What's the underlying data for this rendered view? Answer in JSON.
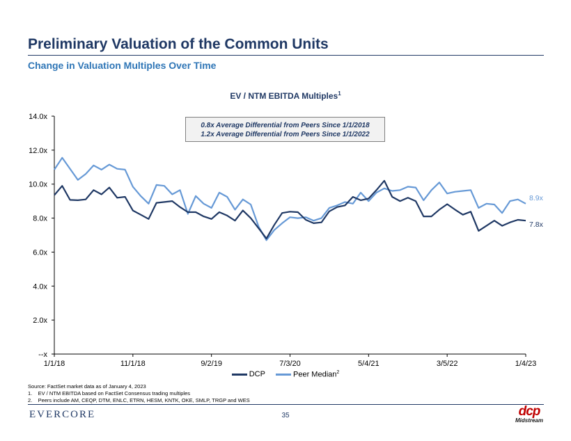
{
  "header": {
    "title": "Preliminary Valuation of the Common Units",
    "subtitle": "Change in Valuation Multiples Over Time"
  },
  "callout": {
    "line1": "0.8x Average Differential from Peers Since 1/1/2018",
    "line2": "1.2x Average Differential from Peers Since 1/1/2022"
  },
  "chart_data": {
    "type": "line",
    "title": "EV / NTM EBITDA Multiples",
    "title_footnote": "1",
    "xlabel": "",
    "ylabel": "",
    "ylim": [
      0,
      14
    ],
    "y_ticks": [
      0,
      2,
      4,
      6,
      8,
      10,
      12,
      14
    ],
    "y_tick_labels": [
      "--x",
      "2.0x",
      "4.0x",
      "6.0x",
      "8.0x",
      "10.0x",
      "12.0x",
      "14.0x"
    ],
    "x_tick_labels": [
      "1/1/18",
      "11/1/18",
      "9/2/19",
      "7/3/20",
      "5/4/21",
      "3/5/22",
      "1/4/23"
    ],
    "grid": false,
    "legend_position": "bottom",
    "colors": {
      "dcp": "#1f3864",
      "peer": "#6699d6"
    },
    "series": [
      {
        "name": "DCP",
        "color": "#1f3864",
        "end_label": "7.8x",
        "values": [
          9.35,
          9.9,
          9.07,
          9.05,
          9.1,
          9.65,
          9.4,
          9.8,
          9.2,
          9.25,
          8.45,
          8.2,
          7.95,
          8.9,
          8.95,
          9.0,
          8.65,
          8.35,
          8.35,
          8.1,
          7.95,
          8.35,
          8.15,
          7.85,
          8.45,
          8.0,
          7.4,
          6.8,
          7.6,
          8.3,
          8.38,
          8.35,
          7.9,
          7.7,
          7.75,
          8.4,
          8.65,
          8.75,
          9.25,
          9.05,
          9.15,
          9.65,
          10.2,
          9.25,
          9.0,
          9.2,
          9.0,
          8.1,
          8.1,
          8.5,
          8.82,
          8.5,
          8.2,
          8.38,
          7.25,
          7.55,
          7.85,
          7.55,
          7.75,
          7.9,
          7.85
        ]
      },
      {
        "name": "Peer Median",
        "name_footnote": "2",
        "color": "#6699d6",
        "end_label": "8.9x",
        "values": [
          10.85,
          11.55,
          10.9,
          10.25,
          10.6,
          11.1,
          10.85,
          11.15,
          10.9,
          10.85,
          9.85,
          9.3,
          8.85,
          9.95,
          9.9,
          9.4,
          9.65,
          8.25,
          9.3,
          8.85,
          8.6,
          9.5,
          9.25,
          8.5,
          9.1,
          8.8,
          7.5,
          6.7,
          7.3,
          7.7,
          8.05,
          8.0,
          8.05,
          7.85,
          8.0,
          8.6,
          8.75,
          8.95,
          8.85,
          9.5,
          9.0,
          9.5,
          9.75,
          9.6,
          9.65,
          9.85,
          9.8,
          9.05,
          9.65,
          10.1,
          9.45,
          9.55,
          9.6,
          9.65,
          8.6,
          8.85,
          8.8,
          8.3,
          9.0,
          9.1,
          8.85
        ]
      }
    ]
  },
  "legend": {
    "dcp_label": "DCP",
    "peer_label": "Peer Median",
    "peer_footnote": "2"
  },
  "footnotes": {
    "source": "Source: FactSet market data as of January 4, 2023",
    "note1": "1.    EV / NTM EBITDA based on FactSet Consensus trading multiples",
    "note2": "2.    Peers include AM, CEQP, DTM, ENLC, ETRN, HESM, KNTK, OKE, SMLP, TRGP and WES"
  },
  "footer": {
    "brand": "EVERCORE",
    "page_number": "35",
    "logo_text": "dcp",
    "logo_subtext": "Midstream"
  }
}
